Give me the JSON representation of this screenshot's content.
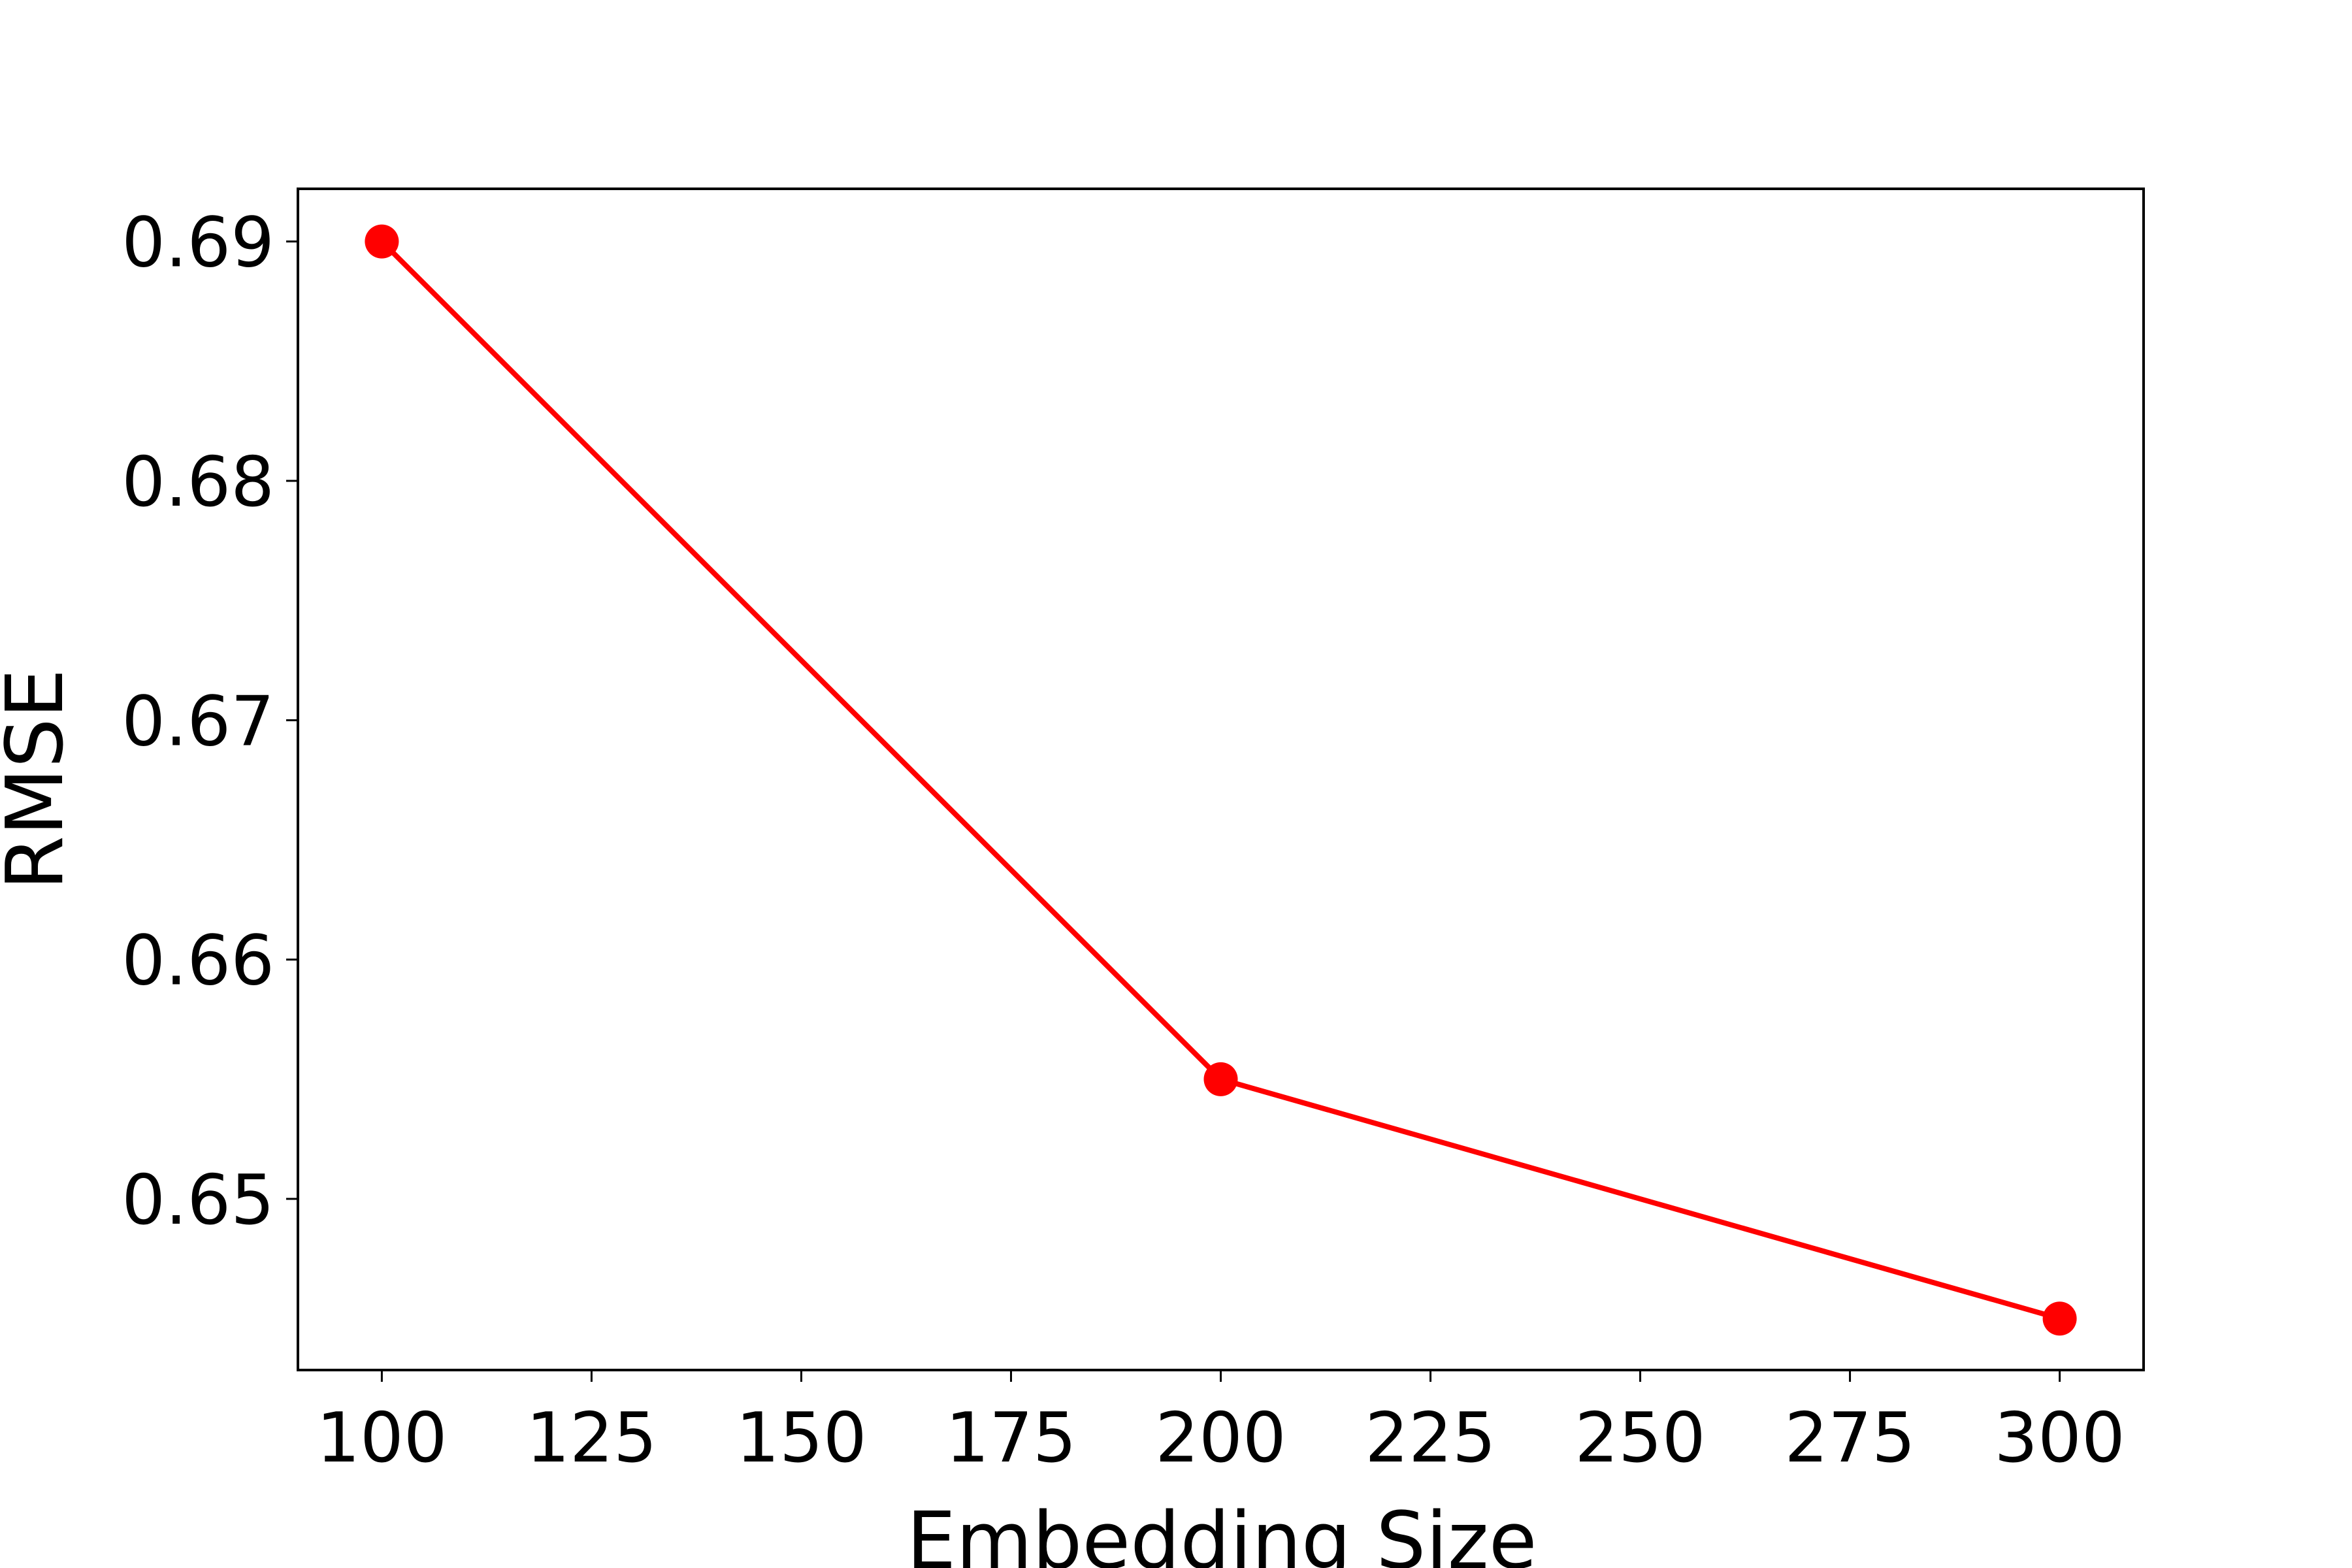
{
  "chart_data": {
    "type": "line",
    "x_label": "Embedding Size",
    "y_label": "RMSE",
    "x": [
      100,
      200,
      300
    ],
    "series": [
      {
        "name": "RMSE",
        "color": "#ff0000",
        "values": [
          0.69,
          0.655,
          0.645
        ]
      }
    ],
    "xlim": [
      90,
      310
    ],
    "xticks": [
      100,
      125,
      150,
      175,
      200,
      225,
      250,
      275,
      300
    ],
    "ylim": [
      0.64285,
      0.6922
    ],
    "yticks": [
      0.65,
      0.66,
      0.67,
      0.68,
      0.69
    ],
    "grid": false,
    "legend": false
  }
}
